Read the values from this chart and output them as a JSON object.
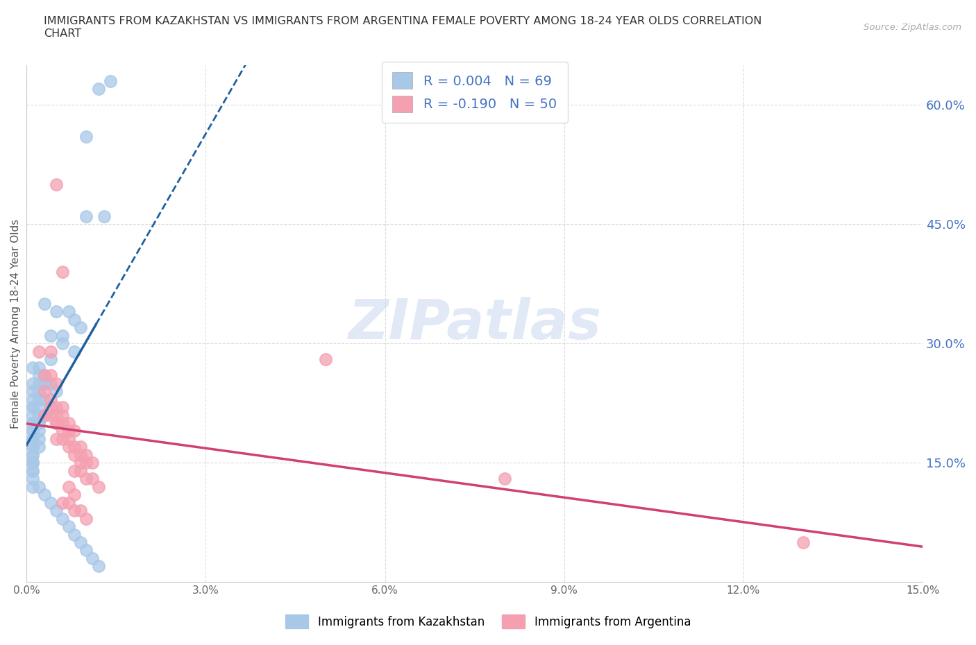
{
  "title": "IMMIGRANTS FROM KAZAKHSTAN VS IMMIGRANTS FROM ARGENTINA FEMALE POVERTY AMONG 18-24 YEAR OLDS CORRELATION\nCHART",
  "source": "Source: ZipAtlas.com",
  "ylabel": "Female Poverty Among 18-24 Year Olds",
  "xlim": [
    0.0,
    0.15
  ],
  "ylim": [
    0.0,
    0.65
  ],
  "xticks": [
    0.0,
    0.03,
    0.06,
    0.09,
    0.12,
    0.15
  ],
  "ytick_positions": [
    0.15,
    0.3,
    0.45,
    0.6
  ],
  "ytick_labels": [
    "15.0%",
    "30.0%",
    "45.0%",
    "60.0%"
  ],
  "xtick_labels": [
    "0.0%",
    "3.0%",
    "6.0%",
    "9.0%",
    "12.0%",
    "15.0%"
  ],
  "grid_color": "#cccccc",
  "background_color": "#ffffff",
  "kazakhstan_color": "#a8c8e8",
  "argentina_color": "#f4a0b0",
  "kazakhstan_line_color": "#2060a0",
  "argentina_line_color": "#d04070",
  "R_kazakhstan": 0.004,
  "N_kazakhstan": 69,
  "R_argentina": -0.19,
  "N_argentina": 50,
  "kazakhstan_x": [
    0.012,
    0.014,
    0.01,
    0.01,
    0.013,
    0.003,
    0.005,
    0.007,
    0.008,
    0.009,
    0.004,
    0.006,
    0.006,
    0.008,
    0.004,
    0.001,
    0.002,
    0.002,
    0.003,
    0.003,
    0.001,
    0.002,
    0.003,
    0.004,
    0.005,
    0.001,
    0.002,
    0.001,
    0.002,
    0.003,
    0.001,
    0.001,
    0.002,
    0.002,
    0.003,
    0.001,
    0.001,
    0.002,
    0.001,
    0.002,
    0.001,
    0.001,
    0.002,
    0.001,
    0.002,
    0.001,
    0.001,
    0.002,
    0.001,
    0.001,
    0.001,
    0.001,
    0.001,
    0.001,
    0.001,
    0.001,
    0.001,
    0.001,
    0.002,
    0.003,
    0.004,
    0.005,
    0.006,
    0.007,
    0.008,
    0.009,
    0.01,
    0.011,
    0.012
  ],
  "kazakhstan_y": [
    0.62,
    0.63,
    0.56,
    0.46,
    0.46,
    0.35,
    0.34,
    0.34,
    0.33,
    0.32,
    0.31,
    0.31,
    0.3,
    0.29,
    0.28,
    0.27,
    0.27,
    0.26,
    0.26,
    0.25,
    0.25,
    0.25,
    0.25,
    0.25,
    0.24,
    0.24,
    0.24,
    0.23,
    0.23,
    0.23,
    0.22,
    0.22,
    0.22,
    0.21,
    0.21,
    0.21,
    0.2,
    0.2,
    0.2,
    0.2,
    0.19,
    0.19,
    0.19,
    0.18,
    0.18,
    0.18,
    0.17,
    0.17,
    0.17,
    0.16,
    0.16,
    0.15,
    0.15,
    0.15,
    0.14,
    0.14,
    0.13,
    0.12,
    0.12,
    0.11,
    0.1,
    0.09,
    0.08,
    0.07,
    0.06,
    0.05,
    0.04,
    0.03,
    0.02
  ],
  "argentina_x": [
    0.005,
    0.05,
    0.002,
    0.004,
    0.006,
    0.003,
    0.004,
    0.005,
    0.003,
    0.004,
    0.005,
    0.006,
    0.004,
    0.005,
    0.006,
    0.003,
    0.004,
    0.005,
    0.006,
    0.007,
    0.005,
    0.006,
    0.007,
    0.008,
    0.006,
    0.007,
    0.007,
    0.008,
    0.009,
    0.008,
    0.009,
    0.01,
    0.009,
    0.01,
    0.011,
    0.008,
    0.009,
    0.01,
    0.011,
    0.012,
    0.007,
    0.008,
    0.006,
    0.007,
    0.008,
    0.009,
    0.01,
    0.005,
    0.13,
    0.08
  ],
  "argentina_y": [
    0.5,
    0.28,
    0.29,
    0.29,
    0.39,
    0.26,
    0.26,
    0.25,
    0.24,
    0.23,
    0.22,
    0.22,
    0.22,
    0.21,
    0.21,
    0.21,
    0.21,
    0.2,
    0.2,
    0.2,
    0.2,
    0.19,
    0.19,
    0.19,
    0.18,
    0.18,
    0.17,
    0.17,
    0.17,
    0.16,
    0.16,
    0.16,
    0.15,
    0.15,
    0.15,
    0.14,
    0.14,
    0.13,
    0.13,
    0.12,
    0.12,
    0.11,
    0.1,
    0.1,
    0.09,
    0.09,
    0.08,
    0.18,
    0.05,
    0.13
  ]
}
